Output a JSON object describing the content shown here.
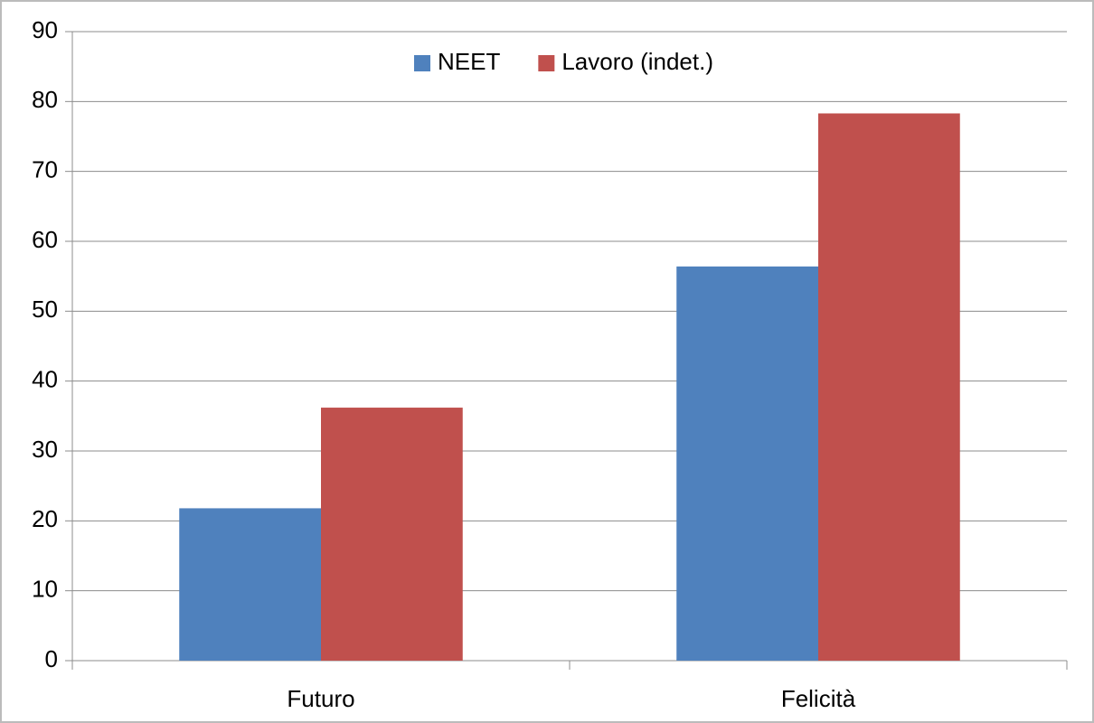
{
  "chart_data": {
    "type": "bar",
    "categories": [
      "Futuro",
      "Felicità"
    ],
    "series": [
      {
        "name": "NEET",
        "color": "#4f81bd",
        "values": [
          21.8,
          56.4
        ]
      },
      {
        "name": "Lavoro (indet.)",
        "color": "#c0504d",
        "values": [
          36.2,
          78.3
        ]
      }
    ],
    "ylim": [
      0,
      90
    ],
    "yticks": [
      0,
      10,
      20,
      30,
      40,
      50,
      60,
      70,
      80,
      90
    ],
    "grid": true,
    "legend": "top"
  }
}
